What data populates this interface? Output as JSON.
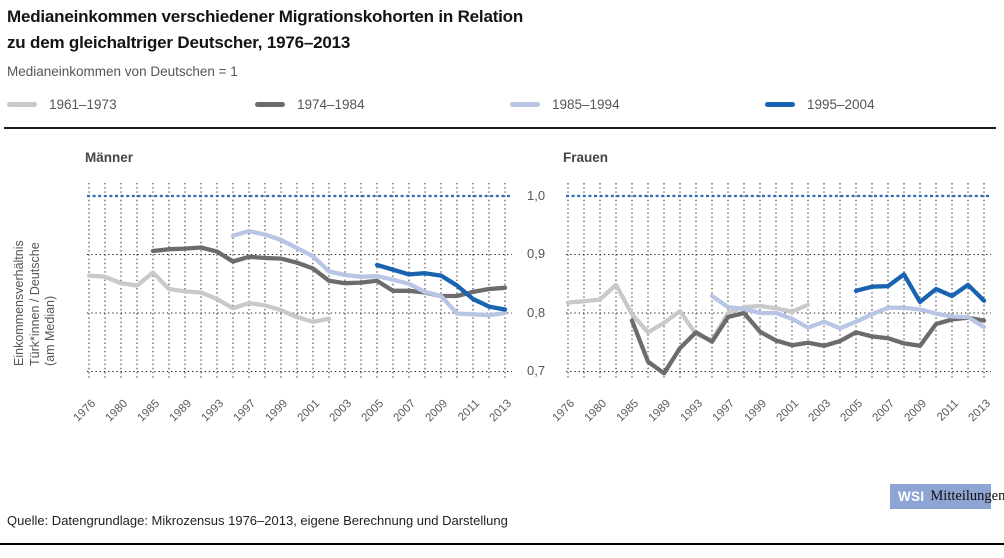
{
  "header": {
    "title_line1": "Medianeinkommen verschiedener Migrationskohorten in Relation",
    "title_line2": "zu dem gleichaltriger Deutscher, 1976–2013",
    "subtitle": "Medianeinkommen von Deutschen = 1"
  },
  "legend": {
    "items": [
      {
        "label": "1961–1973",
        "color": "#c9c9c9"
      },
      {
        "label": "1974–1984",
        "color": "#6c6c6e"
      },
      {
        "label": "1985–1994",
        "color": "#b9c5e5"
      },
      {
        "label": "1995–2004",
        "color": "#1a63b2"
      }
    ]
  },
  "axis": {
    "y_title_line1": "Einkommensverhältnis",
    "y_title_line2": "Türk*innen / Deutsche",
    "y_title_line3": "(am Median)",
    "y_ticks": [
      "1,0",
      "0,9",
      "0,8",
      "0,7"
    ]
  },
  "footer": {
    "source": "Quelle: Datengrundlage: Mikrozensus 1976–2013, eigene Berechnung und Darstellung",
    "badge_wsi": "WSI",
    "badge_name": "Mitteilungen",
    "badge_bg": "#8ea4d3"
  },
  "chart_data": [
    {
      "type": "line",
      "title": "Männer",
      "x": [
        1976,
        1978,
        1980,
        1982,
        1985,
        1987,
        1989,
        1991,
        1993,
        1995,
        1997,
        1998,
        1999,
        2000,
        2001,
        2002,
        2003,
        2004,
        2005,
        2006,
        2007,
        2008,
        2009,
        2010,
        2011,
        2012,
        2013
      ],
      "x_tick_labels": [
        "1976",
        "1980",
        "1985",
        "1989",
        "1993",
        "1997",
        "1999",
        "2001",
        "2003",
        "2005",
        "2007",
        "2009",
        "2011",
        "2013"
      ],
      "x_tick_every": 2,
      "ylim": [
        0.7,
        1.0
      ],
      "y_gridlines": [
        0.9,
        0.8,
        0.7
      ],
      "reference_line": 1.0,
      "grid": true,
      "legend_position": "top",
      "series": [
        {
          "name": "1961–1973",
          "color": "#c9c9c9",
          "values": [
            0.864,
            0.862,
            0.851,
            0.847,
            0.869,
            0.841,
            0.837,
            0.835,
            0.824,
            0.808,
            0.817,
            0.813,
            0.805,
            0.793,
            0.785,
            0.79,
            null,
            null,
            null,
            null,
            null,
            null,
            null,
            null,
            null,
            null,
            null
          ]
        },
        {
          "name": "1974–1984",
          "color": "#6c6c6e",
          "values": [
            null,
            null,
            null,
            null,
            0.906,
            0.909,
            0.91,
            0.912,
            0.905,
            0.888,
            0.896,
            0.894,
            0.893,
            0.886,
            0.876,
            0.855,
            0.851,
            0.852,
            0.855,
            0.838,
            0.838,
            0.835,
            0.829,
            0.829,
            0.836,
            0.841,
            0.843
          ]
        },
        {
          "name": "1985–1994",
          "color": "#b9c5e5",
          "values": [
            null,
            null,
            null,
            null,
            null,
            null,
            null,
            null,
            null,
            0.932,
            0.94,
            0.934,
            0.925,
            0.911,
            0.897,
            0.871,
            0.865,
            0.862,
            0.863,
            0.857,
            0.85,
            0.836,
            0.829,
            0.799,
            0.798,
            0.796,
            0.8
          ]
        },
        {
          "name": "1995–2004",
          "color": "#1a63b2",
          "values": [
            null,
            null,
            null,
            null,
            null,
            null,
            null,
            null,
            null,
            null,
            null,
            null,
            null,
            null,
            null,
            null,
            null,
            null,
            0.882,
            0.874,
            0.866,
            0.868,
            0.864,
            0.847,
            0.824,
            0.811,
            0.806
          ]
        }
      ]
    },
    {
      "type": "line",
      "title": "Frauen",
      "x": [
        1976,
        1978,
        1980,
        1982,
        1985,
        1987,
        1989,
        1991,
        1993,
        1995,
        1997,
        1998,
        1999,
        2000,
        2001,
        2002,
        2003,
        2004,
        2005,
        2006,
        2007,
        2008,
        2009,
        2010,
        2011,
        2012,
        2013
      ],
      "x_tick_labels": [
        "1976",
        "1980",
        "1985",
        "1989",
        "1993",
        "1997",
        "1999",
        "2001",
        "2003",
        "2005",
        "2007",
        "2009",
        "2011",
        "2013"
      ],
      "x_tick_every": 2,
      "ylim": [
        0.7,
        1.0
      ],
      "y_gridlines": [
        0.9,
        0.8,
        0.7
      ],
      "reference_line": 1.0,
      "grid": true,
      "legend_position": "top",
      "series": [
        {
          "name": "1961–1973",
          "color": "#c9c9c9",
          "values": [
            0.818,
            0.82,
            0.823,
            0.848,
            0.798,
            0.767,
            0.783,
            0.803,
            0.764,
            0.753,
            0.8,
            0.81,
            0.812,
            0.808,
            0.802,
            0.814,
            null,
            null,
            null,
            null,
            null,
            null,
            null,
            null,
            null,
            null,
            null
          ]
        },
        {
          "name": "1974–1984",
          "color": "#6c6c6e",
          "values": [
            null,
            null,
            null,
            null,
            0.787,
            0.717,
            0.697,
            0.74,
            0.767,
            0.751,
            0.793,
            0.8,
            0.768,
            0.753,
            0.745,
            0.749,
            0.744,
            0.752,
            0.767,
            0.76,
            0.757,
            0.748,
            0.744,
            0.781,
            0.789,
            0.792,
            0.787
          ]
        },
        {
          "name": "1985–1994",
          "color": "#b9c5e5",
          "values": [
            null,
            null,
            null,
            null,
            null,
            null,
            null,
            null,
            null,
            0.829,
            0.81,
            0.807,
            0.8,
            0.8,
            0.79,
            0.775,
            0.785,
            0.774,
            0.785,
            0.798,
            0.809,
            0.809,
            0.806,
            0.799,
            0.794,
            0.793,
            0.776
          ]
        },
        {
          "name": "1995–2004",
          "color": "#1a63b2",
          "values": [
            null,
            null,
            null,
            null,
            null,
            null,
            null,
            null,
            null,
            null,
            null,
            null,
            null,
            null,
            null,
            null,
            null,
            null,
            0.838,
            0.845,
            0.846,
            0.866,
            0.819,
            0.841,
            0.829,
            0.848,
            0.821
          ]
        }
      ]
    }
  ]
}
